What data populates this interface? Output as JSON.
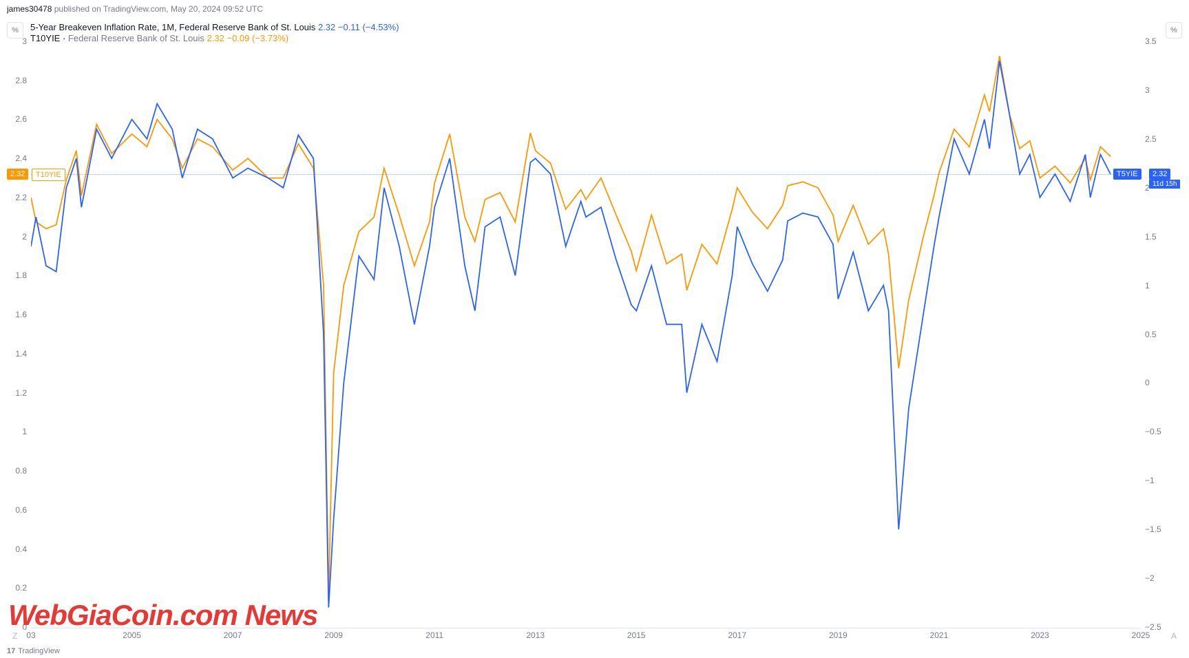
{
  "header": {
    "author": "james30478",
    "platform": "TradingView.com",
    "timestamp": "May 20, 2024 09:52 UTC"
  },
  "toolbar": {
    "pct_label": "%"
  },
  "legend": {
    "line1": {
      "symbol": "5-Year Breakeven Inflation Rate, 1M, Federal Reserve Bank of St. Louis",
      "value": "2.32",
      "change": "−0.11",
      "pct": "(−4.53%)"
    },
    "line2": {
      "symbol": "T10YIE",
      "src": "Federal Reserve Bank of St. Louis",
      "value": "2.32",
      "change": "−0.09",
      "pct": "(−3.73%)"
    }
  },
  "chart": {
    "type": "line",
    "colors": {
      "blue": "#2962ff",
      "orange": "#ff9800",
      "grid": "#e0e3eb",
      "text": "#787b86"
    },
    "x": {
      "start_year": 2003,
      "end_year": 2025,
      "ticks": [
        "03",
        "2005",
        "2007",
        "2009",
        "2011",
        "2013",
        "2015",
        "2017",
        "2019",
        "2021",
        "2023",
        "2025"
      ]
    },
    "y_left": {
      "min": 0,
      "max": 3.0,
      "ticks": [
        3,
        2.8,
        2.6,
        2.4,
        2.2,
        2,
        1.8,
        1.6,
        1.4,
        1.2,
        1,
        0.8,
        0.6,
        0.4,
        0.2,
        0
      ]
    },
    "y_right": {
      "min": -2.5,
      "max": 3.5,
      "ticks": [
        3.5,
        3,
        2.5,
        2,
        1.5,
        1,
        0.5,
        0,
        -0.5,
        -1,
        -1.5,
        -2,
        -2.5
      ]
    },
    "current_value": 2.32,
    "countdown": "11d 15h",
    "blue_badge": "T5YIE",
    "orange_badge": "T10YIE",
    "orange_value": "2.32",
    "series_blue": [
      [
        2003.0,
        1.95
      ],
      [
        2003.1,
        2.1
      ],
      [
        2003.3,
        1.85
      ],
      [
        2003.5,
        1.82
      ],
      [
        2003.7,
        2.25
      ],
      [
        2003.9,
        2.4
      ],
      [
        2004.0,
        2.15
      ],
      [
        2004.3,
        2.55
      ],
      [
        2004.6,
        2.4
      ],
      [
        2005.0,
        2.6
      ],
      [
        2005.3,
        2.5
      ],
      [
        2005.5,
        2.68
      ],
      [
        2005.8,
        2.55
      ],
      [
        2006.0,
        2.3
      ],
      [
        2006.3,
        2.55
      ],
      [
        2006.6,
        2.5
      ],
      [
        2007.0,
        2.3
      ],
      [
        2007.3,
        2.35
      ],
      [
        2007.7,
        2.3
      ],
      [
        2008.0,
        2.25
      ],
      [
        2008.3,
        2.52
      ],
      [
        2008.6,
        2.4
      ],
      [
        2008.8,
        1.5
      ],
      [
        2008.9,
        0.1
      ],
      [
        2009.0,
        0.55
      ],
      [
        2009.2,
        1.25
      ],
      [
        2009.5,
        1.9
      ],
      [
        2009.8,
        1.78
      ],
      [
        2010.0,
        2.25
      ],
      [
        2010.3,
        1.95
      ],
      [
        2010.6,
        1.55
      ],
      [
        2010.9,
        1.95
      ],
      [
        2011.0,
        2.15
      ],
      [
        2011.3,
        2.4
      ],
      [
        2011.6,
        1.85
      ],
      [
        2011.8,
        1.62
      ],
      [
        2012.0,
        2.05
      ],
      [
        2012.3,
        2.1
      ],
      [
        2012.6,
        1.8
      ],
      [
        2012.9,
        2.38
      ],
      [
        2013.0,
        2.4
      ],
      [
        2013.3,
        2.32
      ],
      [
        2013.6,
        1.95
      ],
      [
        2013.9,
        2.18
      ],
      [
        2014.0,
        2.1
      ],
      [
        2014.3,
        2.15
      ],
      [
        2014.6,
        1.88
      ],
      [
        2014.9,
        1.65
      ],
      [
        2015.0,
        1.62
      ],
      [
        2015.3,
        1.85
      ],
      [
        2015.6,
        1.55
      ],
      [
        2015.9,
        1.55
      ],
      [
        2016.0,
        1.2
      ],
      [
        2016.3,
        1.55
      ],
      [
        2016.6,
        1.36
      ],
      [
        2016.9,
        1.8
      ],
      [
        2017.0,
        2.05
      ],
      [
        2017.3,
        1.86
      ],
      [
        2017.6,
        1.72
      ],
      [
        2017.9,
        1.88
      ],
      [
        2018.0,
        2.08
      ],
      [
        2018.3,
        2.12
      ],
      [
        2018.6,
        2.1
      ],
      [
        2018.9,
        1.96
      ],
      [
        2019.0,
        1.68
      ],
      [
        2019.3,
        1.92
      ],
      [
        2019.6,
        1.62
      ],
      [
        2019.9,
        1.75
      ],
      [
        2020.0,
        1.62
      ],
      [
        2020.2,
        0.5
      ],
      [
        2020.4,
        1.12
      ],
      [
        2020.7,
        1.62
      ],
      [
        2020.9,
        1.95
      ],
      [
        2021.0,
        2.1
      ],
      [
        2021.3,
        2.5
      ],
      [
        2021.6,
        2.32
      ],
      [
        2021.9,
        2.6
      ],
      [
        2022.0,
        2.45
      ],
      [
        2022.2,
        2.9
      ],
      [
        2022.4,
        2.62
      ],
      [
        2022.6,
        2.32
      ],
      [
        2022.8,
        2.42
      ],
      [
        2023.0,
        2.2
      ],
      [
        2023.3,
        2.32
      ],
      [
        2023.6,
        2.18
      ],
      [
        2023.9,
        2.42
      ],
      [
        2024.0,
        2.2
      ],
      [
        2024.2,
        2.42
      ],
      [
        2024.4,
        2.32
      ]
    ],
    "series_orange": [
      [
        2003.0,
        1.9
      ],
      [
        2003.1,
        1.65
      ],
      [
        2003.3,
        1.58
      ],
      [
        2003.5,
        1.62
      ],
      [
        2003.7,
        2.08
      ],
      [
        2003.9,
        2.38
      ],
      [
        2004.0,
        1.92
      ],
      [
        2004.3,
        2.65
      ],
      [
        2004.6,
        2.35
      ],
      [
        2005.0,
        2.55
      ],
      [
        2005.3,
        2.42
      ],
      [
        2005.5,
        2.7
      ],
      [
        2005.8,
        2.5
      ],
      [
        2006.0,
        2.2
      ],
      [
        2006.3,
        2.5
      ],
      [
        2006.6,
        2.42
      ],
      [
        2007.0,
        2.18
      ],
      [
        2007.3,
        2.3
      ],
      [
        2007.7,
        2.1
      ],
      [
        2008.0,
        2.1
      ],
      [
        2008.3,
        2.45
      ],
      [
        2008.6,
        2.2
      ],
      [
        2008.8,
        1.0
      ],
      [
        2008.9,
        -2.2
      ],
      [
        2009.0,
        0.1
      ],
      [
        2009.2,
        1.0
      ],
      [
        2009.5,
        1.55
      ],
      [
        2009.8,
        1.7
      ],
      [
        2010.0,
        2.2
      ],
      [
        2010.3,
        1.72
      ],
      [
        2010.6,
        1.2
      ],
      [
        2010.9,
        1.65
      ],
      [
        2011.0,
        2.05
      ],
      [
        2011.3,
        2.55
      ],
      [
        2011.6,
        1.7
      ],
      [
        2011.8,
        1.45
      ],
      [
        2012.0,
        1.88
      ],
      [
        2012.3,
        1.95
      ],
      [
        2012.6,
        1.65
      ],
      [
        2012.9,
        2.56
      ],
      [
        2013.0,
        2.38
      ],
      [
        2013.3,
        2.25
      ],
      [
        2013.6,
        1.78
      ],
      [
        2013.9,
        1.98
      ],
      [
        2014.0,
        1.88
      ],
      [
        2014.3,
        2.1
      ],
      [
        2014.6,
        1.72
      ],
      [
        2014.9,
        1.35
      ],
      [
        2015.0,
        1.15
      ],
      [
        2015.3,
        1.72
      ],
      [
        2015.6,
        1.22
      ],
      [
        2015.9,
        1.32
      ],
      [
        2016.0,
        0.95
      ],
      [
        2016.3,
        1.42
      ],
      [
        2016.6,
        1.22
      ],
      [
        2016.9,
        1.78
      ],
      [
        2017.0,
        2.0
      ],
      [
        2017.3,
        1.75
      ],
      [
        2017.6,
        1.58
      ],
      [
        2017.9,
        1.82
      ],
      [
        2018.0,
        2.02
      ],
      [
        2018.3,
        2.06
      ],
      [
        2018.6,
        2.0
      ],
      [
        2018.9,
        1.72
      ],
      [
        2019.0,
        1.45
      ],
      [
        2019.3,
        1.82
      ],
      [
        2019.6,
        1.42
      ],
      [
        2019.9,
        1.58
      ],
      [
        2020.0,
        1.32
      ],
      [
        2020.2,
        0.15
      ],
      [
        2020.4,
        0.85
      ],
      [
        2020.7,
        1.52
      ],
      [
        2020.9,
        1.92
      ],
      [
        2021.0,
        2.15
      ],
      [
        2021.3,
        2.6
      ],
      [
        2021.6,
        2.42
      ],
      [
        2021.9,
        2.95
      ],
      [
        2022.0,
        2.78
      ],
      [
        2022.2,
        3.35
      ],
      [
        2022.4,
        2.75
      ],
      [
        2022.6,
        2.4
      ],
      [
        2022.8,
        2.48
      ],
      [
        2023.0,
        2.1
      ],
      [
        2023.3,
        2.22
      ],
      [
        2023.6,
        2.05
      ],
      [
        2023.9,
        2.3
      ],
      [
        2024.0,
        2.08
      ],
      [
        2024.2,
        2.42
      ],
      [
        2024.4,
        2.32
      ]
    ]
  },
  "watermark": "WebGiaCoin.com News",
  "footer": {
    "tv": "TradingView",
    "z": "Z",
    "a": "A"
  }
}
